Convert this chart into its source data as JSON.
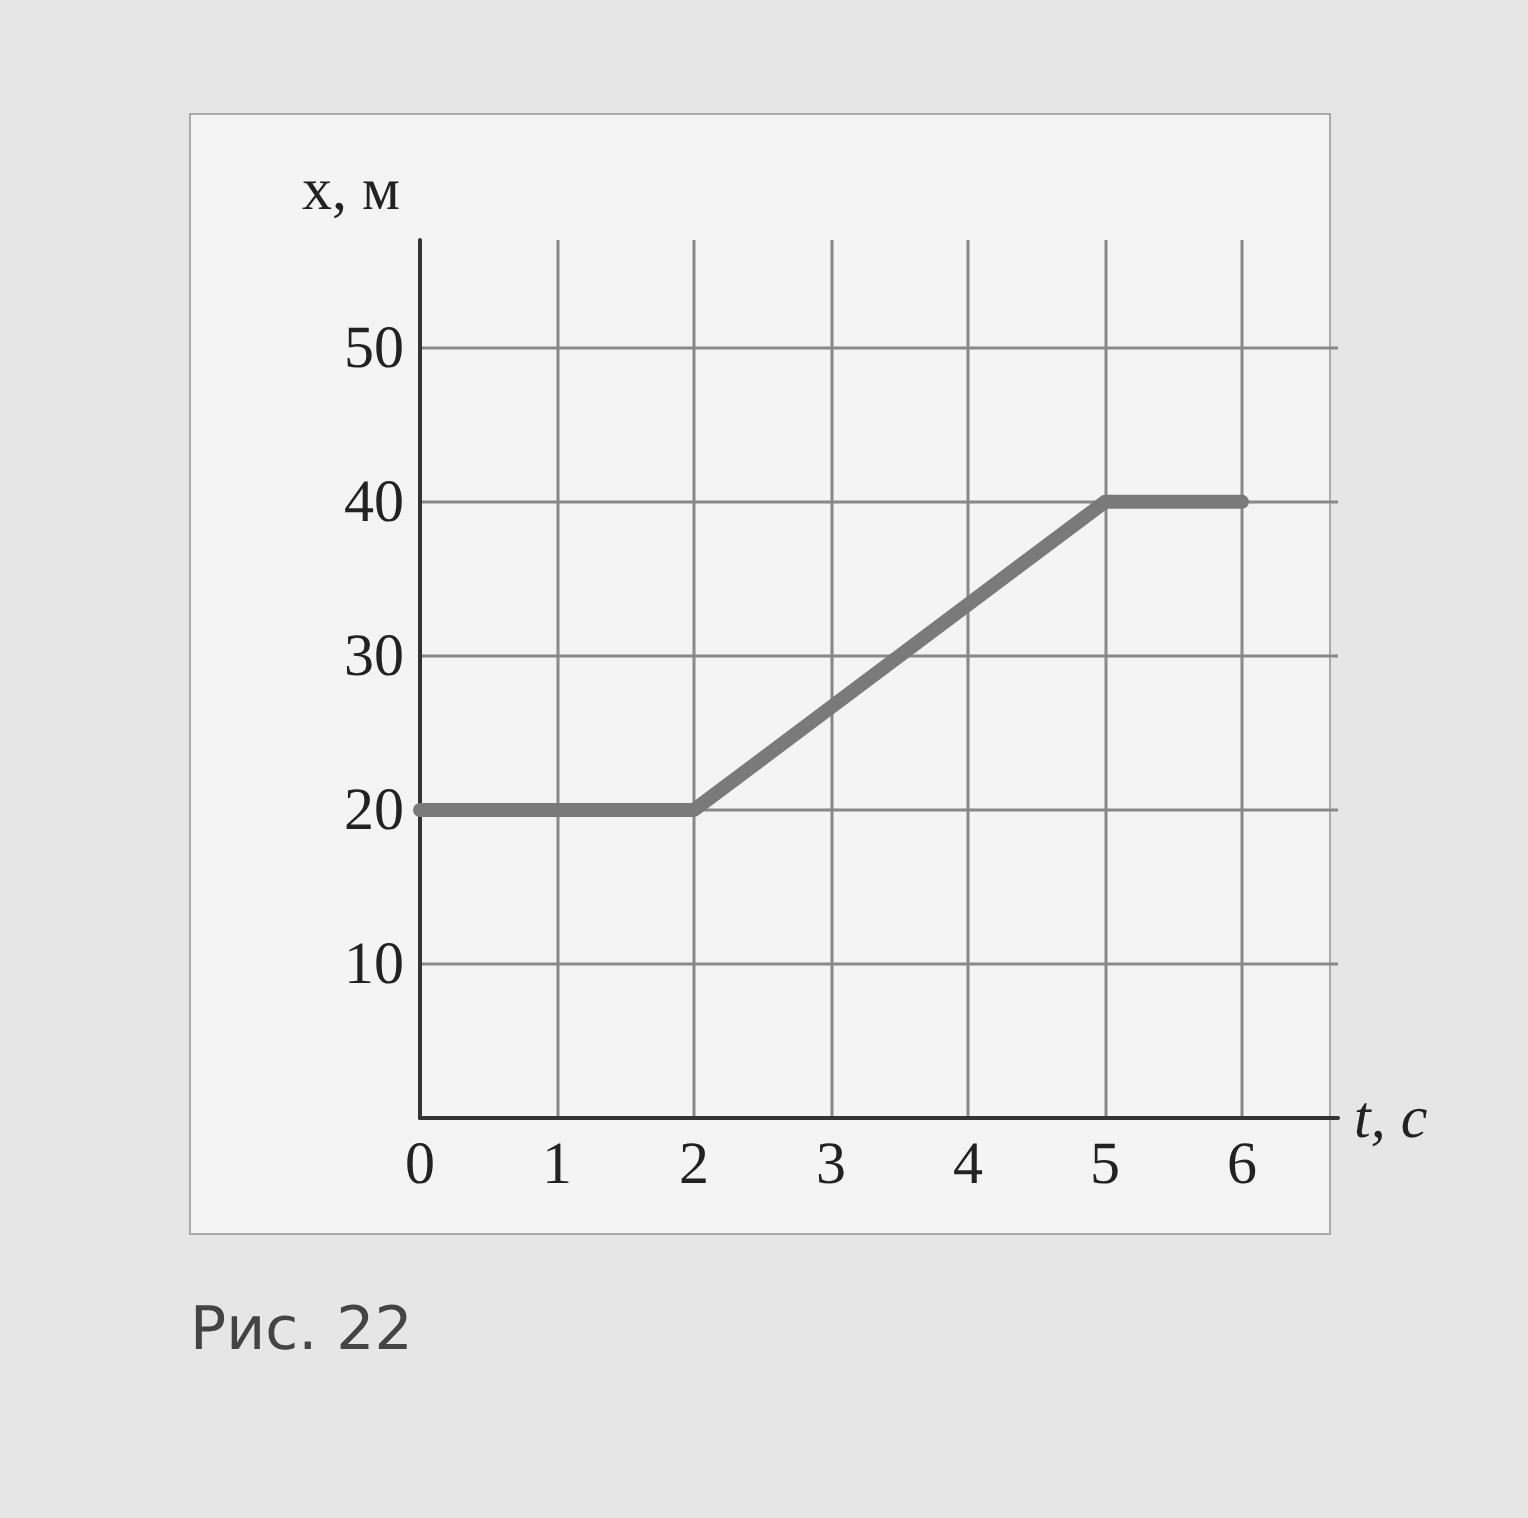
{
  "chart_data": {
    "type": "line",
    "xlabel": "t, с",
    "ylabel": "x, м",
    "annotations": [
      "Рис. 22"
    ],
    "x": [
      0,
      2,
      5,
      6
    ],
    "series": [
      {
        "color": "#7a7a7a",
        "values": [
          20,
          20,
          40,
          40
        ]
      }
    ],
    "xlim": [
      0,
      6.7
    ],
    "ylim": [
      0,
      57
    ],
    "xticks": [
      0,
      1,
      2,
      3,
      4,
      5,
      6
    ],
    "yticks": [
      {
        "value": 0,
        "label": null
      },
      10,
      20,
      30,
      40,
      50
    ],
    "grid": true,
    "line_style": "solid"
  }
}
